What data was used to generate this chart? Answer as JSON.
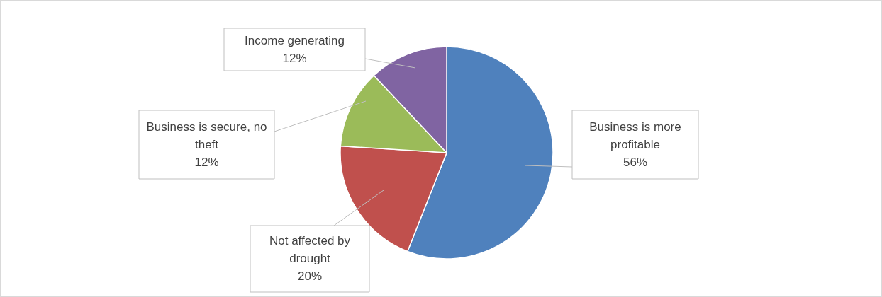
{
  "chart_data": {
    "type": "pie",
    "categories": [
      "Business is more profitable",
      "Not affected by drought",
      "Business is secure, no theft",
      "Income generating"
    ],
    "values": [
      56,
      20,
      12,
      12
    ],
    "value_labels": [
      "56%",
      "20%",
      "12%",
      "12%"
    ],
    "colors": [
      "#4f81bd",
      "#c0504d",
      "#9bbb59",
      "#8064a2"
    ]
  }
}
